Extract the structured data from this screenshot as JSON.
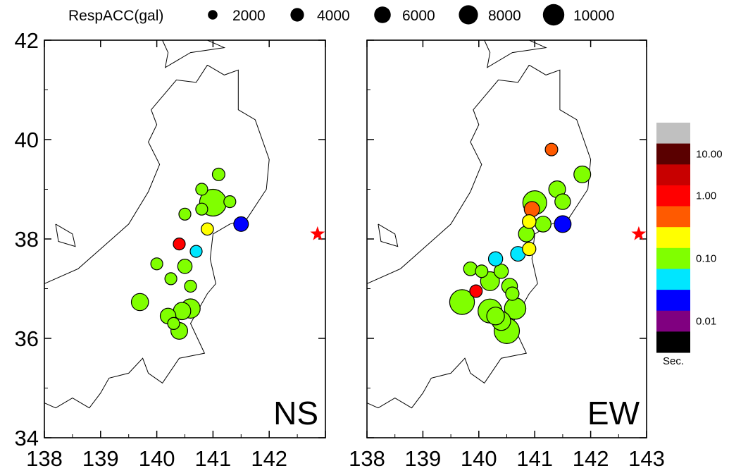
{
  "legend": {
    "title": "RespACC(gal)",
    "sizes": [
      {
        "label": "2000",
        "value": 2000
      },
      {
        "label": "4000",
        "value": 4000
      },
      {
        "label": "6000",
        "value": 6000
      },
      {
        "label": "8000",
        "value": 8000
      },
      {
        "label": "10000",
        "value": 10000
      }
    ]
  },
  "panels": [
    {
      "label": "NS"
    },
    {
      "label": "EW"
    }
  ],
  "axes": {
    "x_ticks": [
      "138",
      "139",
      "140",
      "141",
      "142",
      "143"
    ],
    "y_ticks": [
      "34",
      "36",
      "38",
      "40",
      "42"
    ],
    "xlim": [
      138,
      143
    ],
    "ylim": [
      34,
      42
    ]
  },
  "colorbar": {
    "unit": "Sec.",
    "tick_labels": [
      "10.00",
      "1.00",
      "0.10",
      "0.01"
    ],
    "colors": [
      "#c0c0c0",
      "#5a0000",
      "#c80000",
      "#ff0000",
      "#ff5a00",
      "#ffff00",
      "#80ff00",
      "#00e6ff",
      "#0000ff",
      "#800080",
      "#000000"
    ]
  },
  "epicenter": {
    "lon": 142.86,
    "lat": 38.1,
    "color": "#ff0000"
  },
  "chart_data": [
    {
      "type": "scatter",
      "title": "NS",
      "xlim": [
        138,
        143
      ],
      "ylim": [
        34,
        42
      ],
      "series": [
        {
          "x": [
            141.0,
            140.6,
            140.45,
            140.4,
            140.2,
            139.7,
            141.5,
            141.1,
            140.8,
            141.3,
            140.5,
            140.9,
            140.8,
            140.7,
            140.4,
            140.3,
            140.6,
            140.5,
            140.0,
            140.25
          ],
          "y": [
            38.73,
            36.6,
            36.55,
            36.15,
            36.45,
            36.73,
            38.3,
            39.3,
            38.6,
            38.75,
            37.45,
            38.2,
            39.0,
            37.75,
            37.9,
            36.3,
            37.05,
            38.5,
            37.5,
            37.2
          ],
          "size": [
            10000,
            5200,
            4200,
            3900,
            3400,
            4100,
            3000,
            2200,
            2000,
            2000,
            2900,
            2100,
            2000,
            2000,
            2000,
            2000,
            2000,
            2000,
            2000,
            2000
          ],
          "color": [
            "#80ff00",
            "#80ff00",
            "#80ff00",
            "#80ff00",
            "#80ff00",
            "#80ff00",
            "#0000ff",
            "#80ff00",
            "#80ff00",
            "#80ff00",
            "#80ff00",
            "#ffff00",
            "#80ff00",
            "#00e6ff",
            "#ff0000",
            "#80ff00",
            "#80ff00",
            "#80ff00",
            "#80ff00",
            "#80ff00"
          ]
        }
      ]
    },
    {
      "type": "scatter",
      "title": "EW",
      "xlim": [
        138,
        143
      ],
      "ylim": [
        34,
        42
      ],
      "series": [
        {
          "x": [
            139.7,
            140.2,
            140.5,
            141.0,
            140.65,
            140.4,
            140.2,
            141.5,
            141.85,
            141.4,
            141.5,
            140.95,
            140.3,
            141.15,
            140.9,
            140.4,
            140.55,
            140.3,
            141.3,
            139.95,
            140.85,
            140.7,
            139.85,
            140.05,
            140.9,
            140.6
          ],
          "y": [
            36.73,
            36.55,
            36.15,
            38.73,
            36.6,
            36.35,
            37.15,
            38.3,
            39.3,
            39.0,
            38.75,
            38.6,
            36.45,
            38.3,
            37.8,
            37.35,
            37.05,
            37.6,
            39.8,
            36.95,
            38.1,
            37.7,
            37.4,
            37.35,
            38.35,
            36.9
          ],
          "size": [
            8600,
            8000,
            9000,
            7900,
            6400,
            5000,
            5000,
            3900,
            3900,
            3900,
            3400,
            3300,
            4400,
            3500,
            2500,
            2800,
            3500,
            2800,
            2200,
            2200,
            3500,
            3000,
            2600,
            2200,
            2600,
            2500
          ],
          "color": [
            "#80ff00",
            "#80ff00",
            "#80ff00",
            "#80ff00",
            "#80ff00",
            "#80ff00",
            "#80ff00",
            "#0000ff",
            "#80ff00",
            "#80ff00",
            "#80ff00",
            "#ff5a00",
            "#80ff00",
            "#80ff00",
            "#ffff00",
            "#80ff00",
            "#80ff00",
            "#00e6ff",
            "#ff5a00",
            "#ff0000",
            "#80ff00",
            "#00e6ff",
            "#80ff00",
            "#80ff00",
            "#ffff00",
            "#80ff00"
          ]
        }
      ]
    }
  ]
}
